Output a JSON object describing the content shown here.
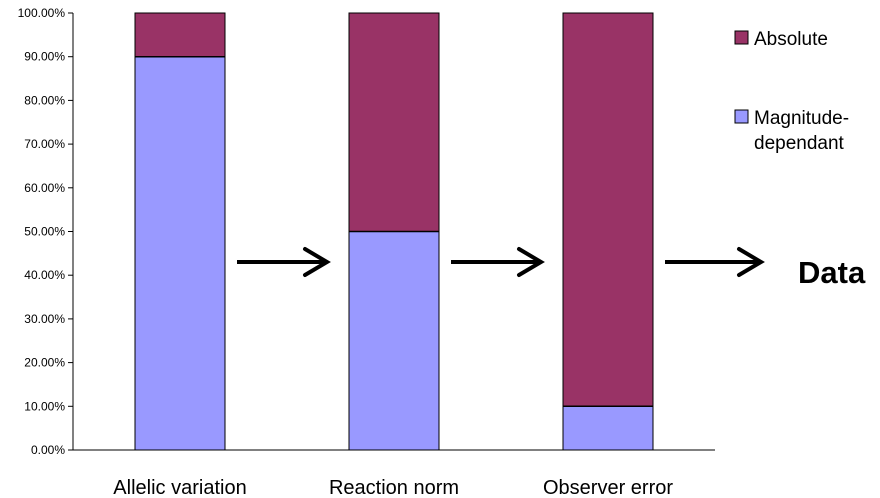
{
  "chart_data": {
    "type": "bar",
    "stacked": true,
    "categories": [
      "Allelic variation",
      "Reaction norm",
      "Observer error"
    ],
    "series": [
      {
        "name": "Magnitude-dependant",
        "values": [
          90,
          50,
          10
        ],
        "color": "#9999ff"
      },
      {
        "name": "Absolute",
        "values": [
          10,
          50,
          90
        ],
        "color": "#993366"
      }
    ],
    "ylim": [
      0,
      100
    ],
    "yticks": [
      "0.00%",
      "10.00%",
      "20.00%",
      "30.00%",
      "40.00%",
      "50.00%",
      "60.00%",
      "70.00%",
      "80.00%",
      "90.00%",
      "100.00%"
    ],
    "legend": {
      "position": "top-right",
      "entries": [
        {
          "label_lines": [
            "Absolute"
          ],
          "color": "#993366"
        },
        {
          "label_lines": [
            "Magnitude-",
            "dependant"
          ],
          "color": "#9999ff"
        }
      ]
    },
    "annotation": "Data",
    "grid": false
  }
}
